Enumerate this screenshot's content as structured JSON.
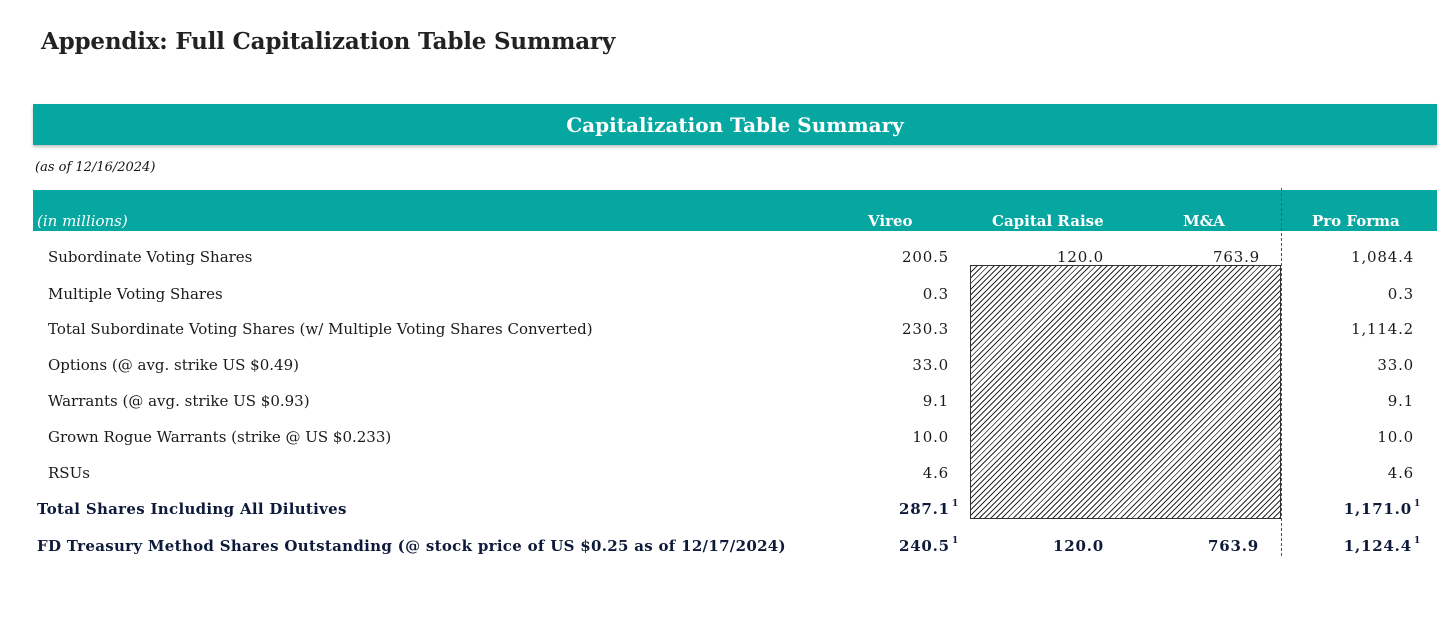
{
  "page": {
    "title": "Appendix: Full Capitalization Table Summary"
  },
  "banner": {
    "title": "Capitalization Table Summary",
    "color": "#06a7a1"
  },
  "as_of": "(as of 12/16/2024)",
  "table": {
    "units_label": "(in millions)",
    "columns": [
      "Vireo",
      "Capital Raise",
      "M&A",
      "Pro Forma"
    ],
    "rows": [
      {
        "label": "Subordinate Voting Shares",
        "vireo": "200.5",
        "capital_raise": "120.0",
        "ma": "763.9",
        "pro_forma": "1,084.4",
        "bold": false
      },
      {
        "label": "Multiple Voting Shares",
        "vireo": "0.3",
        "capital_raise": "",
        "ma": "",
        "pro_forma": "0.3",
        "bold": false
      },
      {
        "label": "Total Subordinate Voting Shares (w/ Multiple Voting Shares Converted)",
        "vireo": "230.3",
        "capital_raise": "",
        "ma": "",
        "pro_forma": "1,114.2",
        "bold": false
      },
      {
        "label": "Options (@ avg. strike US $0.49)",
        "vireo": "33.0",
        "capital_raise": "",
        "ma": "",
        "pro_forma": "33.0",
        "bold": false
      },
      {
        "label": "Warrants (@ avg. strike US $0.93)",
        "vireo": "9.1",
        "capital_raise": "",
        "ma": "",
        "pro_forma": "9.1",
        "bold": false
      },
      {
        "label": "Grown Rogue Warrants (strike @ US $0.233)",
        "vireo": "10.0",
        "capital_raise": "",
        "ma": "",
        "pro_forma": "10.0",
        "bold": false
      },
      {
        "label": "RSUs",
        "vireo": "4.6",
        "capital_raise": "",
        "ma": "",
        "pro_forma": "4.6",
        "bold": false
      },
      {
        "label": "Total Shares Including All Dilutives",
        "vireo": "287.1",
        "vireo_note": "1",
        "capital_raise": "",
        "ma": "",
        "pro_forma": "1,171.0",
        "pro_forma_note": "1",
        "bold": true
      },
      {
        "label": "FD Treasury Method Shares Outstanding (@ stock price of US $0.25 as of 12/17/2024)",
        "vireo": "240.5",
        "vireo_note": "1",
        "capital_raise": "120.0",
        "ma": "763.9",
        "pro_forma": "1,124.4",
        "pro_forma_note": "1",
        "bold": true
      }
    ]
  }
}
